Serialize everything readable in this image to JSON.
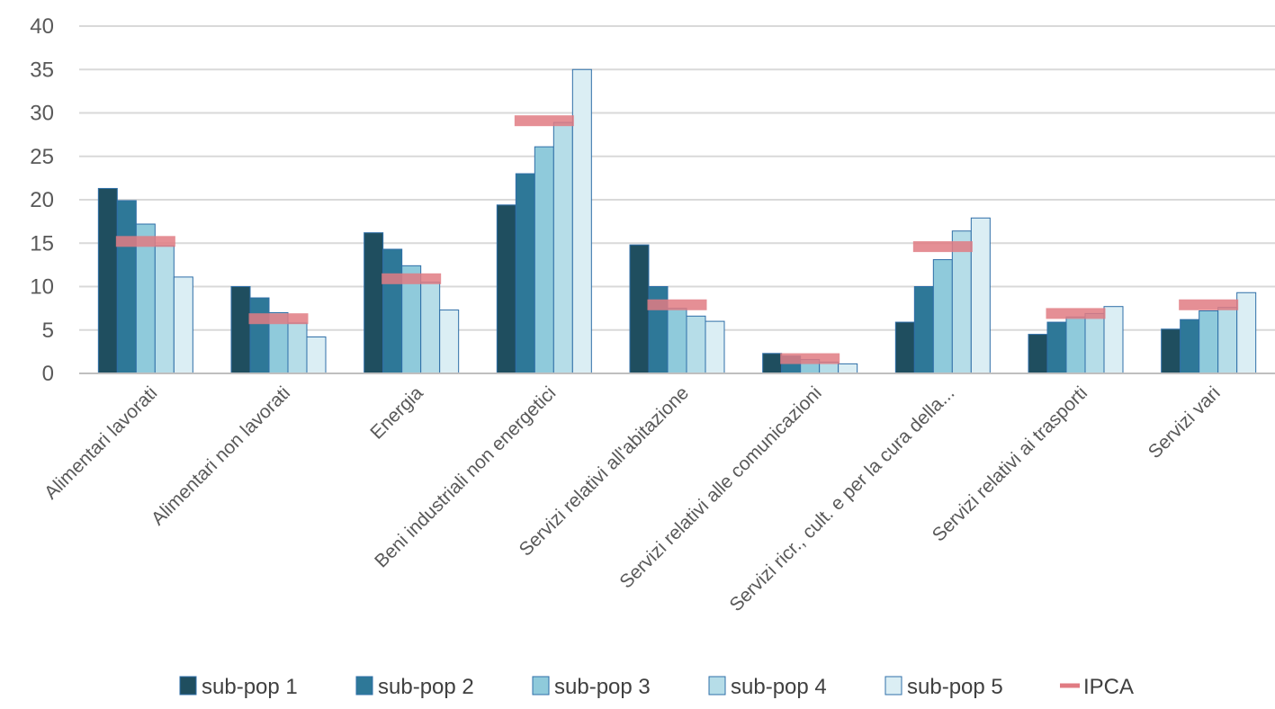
{
  "chart_data": {
    "type": "bar",
    "categories": [
      "Alimentari lavorati",
      "Alimentari non lavorati",
      "Energia",
      "Beni industriali non energetici",
      "Servizi relativi all'abitazione",
      "Servizi relativi alle comunicazioni",
      "Servizi ricr., cult. e per la cura della...",
      "Servizi relativi ai trasporti",
      "Servizi vari"
    ],
    "series": [
      {
        "name": "sub-pop 1",
        "color": "#1f4e5f",
        "values": [
          21.3,
          10.0,
          16.2,
          19.4,
          14.8,
          2.3,
          5.9,
          4.5,
          5.1
        ]
      },
      {
        "name": "sub-pop 2",
        "color": "#2e7898",
        "values": [
          19.9,
          8.7,
          14.3,
          23.0,
          10.0,
          2.0,
          10.0,
          5.9,
          6.2
        ]
      },
      {
        "name": "sub-pop 3",
        "color": "#8fcadb",
        "values": [
          17.2,
          7.0,
          12.4,
          26.1,
          7.5,
          1.6,
          13.1,
          6.5,
          7.2
        ]
      },
      {
        "name": "sub-pop 4",
        "color": "#b6dde8",
        "values": [
          14.7,
          5.8,
          10.5,
          28.9,
          6.6,
          1.3,
          16.4,
          6.9,
          7.6
        ]
      },
      {
        "name": "sub-pop 5",
        "color": "#dbeef4",
        "values": [
          11.1,
          4.2,
          7.3,
          35.0,
          6.0,
          1.1,
          17.9,
          7.7,
          9.3
        ]
      }
    ],
    "ipca": {
      "name": "IPCA",
      "color": "#e07b82",
      "values": [
        15.2,
        6.3,
        10.9,
        29.1,
        7.9,
        1.7,
        14.6,
        6.9,
        7.9
      ]
    },
    "ylim": [
      0,
      40
    ],
    "yticks": [
      "0",
      "5",
      "10",
      "15",
      "20",
      "25",
      "30",
      "35",
      "40"
    ],
    "grid": true,
    "legend_position": "bottom"
  }
}
